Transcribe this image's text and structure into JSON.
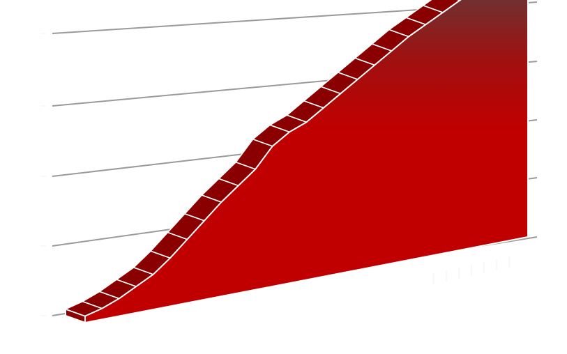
{
  "chart_data": {
    "type": "area",
    "style": "3d",
    "x": [
      1,
      2,
      3,
      4,
      5,
      6,
      7,
      8,
      9,
      10,
      11,
      12,
      13,
      14,
      15,
      16,
      17,
      18,
      19,
      20,
      21,
      22,
      23,
      24,
      25,
      26,
      27
    ],
    "series": [
      {
        "values": [
          0.3,
          0.5,
          0.8,
          1.2,
          1.6,
          2.2,
          2.9,
          3.6,
          4.3,
          4.9,
          5.5,
          6.4,
          6.9,
          7.2,
          7.7,
          8.2,
          8.7,
          9.2,
          9.7,
          10.2,
          10.6,
          11.0,
          11.4,
          11.8,
          12.2,
          12.7,
          13.2
        ],
        "color_top": "#4a4a4a",
        "color_bottom": "#c00000",
        "side_color": "#8a0000",
        "outline_color": "#ffffff"
      }
    ],
    "ylim": [
      0,
      14
    ],
    "grid": true,
    "gridline_color": "#9a9a9a",
    "legend": "none",
    "title": "",
    "xlabel": "",
    "ylabel": ""
  }
}
